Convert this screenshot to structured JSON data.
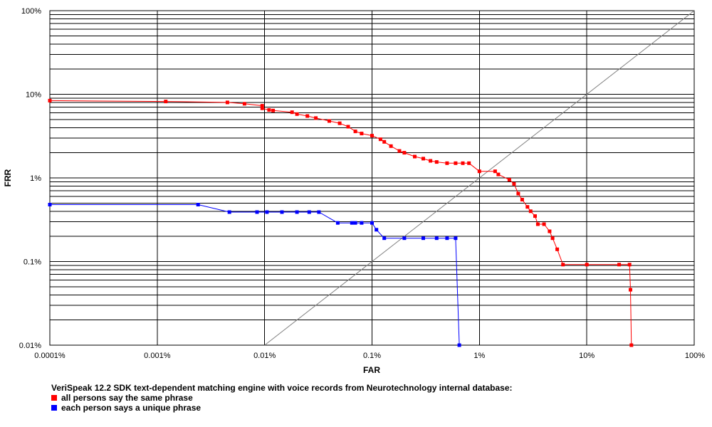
{
  "chart_data": {
    "type": "line",
    "title": "",
    "xlabel": "FAR",
    "ylabel": "FRR",
    "x_scale": "log",
    "y_scale": "log",
    "xlim": [
      0.0001,
      100
    ],
    "ylim": [
      0.01,
      100
    ],
    "x_ticks": [
      {
        "value": 0.0001,
        "label": "0.0001%"
      },
      {
        "value": 0.001,
        "label": "0.001%"
      },
      {
        "value": 0.01,
        "label": "0.01%"
      },
      {
        "value": 0.1,
        "label": "0.1%"
      },
      {
        "value": 1,
        "label": "1%"
      },
      {
        "value": 10,
        "label": "10%"
      },
      {
        "value": 100,
        "label": "100%"
      }
    ],
    "y_ticks": [
      {
        "value": 0.01,
        "label": "0.01%"
      },
      {
        "value": 0.1,
        "label": "0.1%"
      },
      {
        "value": 1,
        "label": "1%"
      },
      {
        "value": 10,
        "label": "10%"
      },
      {
        "value": 100,
        "label": "100%"
      }
    ],
    "grid": true,
    "legend_position": "bottom",
    "legend_title": "VeriSpeak 12.2 SDK text-dependent matching engine with voice records from Neurotechnology internal database:",
    "series": [
      {
        "name": "all persons say the same phrase",
        "color": "#ff0000",
        "x": [
          0.0001,
          0.0012,
          0.0045,
          0.0065,
          0.0095,
          0.0095,
          0.011,
          0.012,
          0.018,
          0.02,
          0.025,
          0.03,
          0.04,
          0.05,
          0.06,
          0.07,
          0.08,
          0.1,
          0.12,
          0.13,
          0.15,
          0.18,
          0.2,
          0.25,
          0.3,
          0.35,
          0.4,
          0.5,
          0.6,
          0.7,
          0.8,
          1.0,
          1.4,
          1.5,
          1.9,
          2.1,
          2.3,
          2.5,
          2.8,
          3.0,
          3.3,
          3.5,
          4.0,
          4.5,
          4.8,
          5.3,
          6.0,
          10.0,
          20.0,
          25.0,
          25.5,
          26.0
        ],
        "y": [
          8.4,
          8.2,
          8.0,
          7.7,
          7.3,
          6.8,
          6.5,
          6.4,
          6.1,
          5.8,
          5.5,
          5.2,
          4.8,
          4.5,
          4.1,
          3.6,
          3.4,
          3.2,
          2.9,
          2.7,
          2.4,
          2.1,
          2.0,
          1.8,
          1.7,
          1.6,
          1.55,
          1.5,
          1.5,
          1.5,
          1.5,
          1.2,
          1.2,
          1.1,
          0.95,
          0.85,
          0.65,
          0.55,
          0.45,
          0.4,
          0.35,
          0.28,
          0.28,
          0.23,
          0.19,
          0.14,
          0.092,
          0.092,
          0.092,
          0.092,
          0.046,
          0.01
        ]
      },
      {
        "name": "each person says a unique phrase",
        "color": "#0000ff",
        "x": [
          0.0001,
          0.0024,
          0.0047,
          0.0085,
          0.0105,
          0.0145,
          0.02,
          0.026,
          0.032,
          0.048,
          0.065,
          0.07,
          0.08,
          0.1,
          0.11,
          0.13,
          0.2,
          0.3,
          0.4,
          0.5,
          0.6,
          0.65
        ],
        "y": [
          0.48,
          0.48,
          0.39,
          0.39,
          0.39,
          0.39,
          0.39,
          0.39,
          0.39,
          0.29,
          0.29,
          0.29,
          0.29,
          0.29,
          0.24,
          0.19,
          0.19,
          0.19,
          0.19,
          0.19,
          0.19,
          0.01
        ]
      }
    ],
    "reference_line": {
      "from": [
        0.01,
        0.01
      ],
      "to": [
        100,
        100
      ],
      "color": "#808080"
    }
  }
}
